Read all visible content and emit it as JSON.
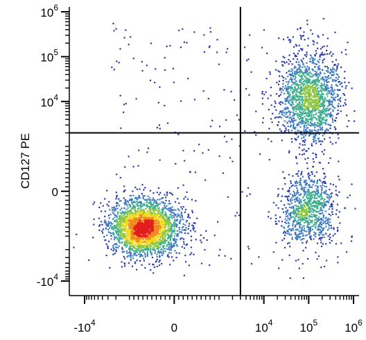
{
  "chart_data": {
    "type": "scatter",
    "title": "",
    "xlabel": "",
    "ylabel": "CD127 PE",
    "x_scale": "biexponential",
    "y_scale": "biexponential",
    "x_ticks": [
      {
        "base": "-10",
        "exp": "4",
        "value": -10000
      },
      {
        "base": "0",
        "exp": "",
        "value": 0
      },
      {
        "base": "10",
        "exp": "4",
        "value": 10000
      },
      {
        "base": "10",
        "exp": "5",
        "value": 100000
      },
      {
        "base": "10",
        "exp": "6",
        "value": 1000000
      }
    ],
    "y_ticks": [
      {
        "base": "10",
        "exp": "6",
        "value": 1000000
      },
      {
        "base": "10",
        "exp": "5",
        "value": 100000
      },
      {
        "base": "10",
        "exp": "4",
        "value": 10000
      },
      {
        "base": "0",
        "exp": "",
        "value": 0
      },
      {
        "base": "-10",
        "exp": "4",
        "value": -10000
      }
    ],
    "quadrant_gate": {
      "x": 3000,
      "y": 2000
    },
    "density_colormap": [
      "#2a3ba8",
      "#3d7ac2",
      "#3fae8f",
      "#8cc63f",
      "#f2d81e",
      "#f08a1e",
      "#e31d1d"
    ],
    "populations": [
      {
        "cx": -700,
        "cy": -800,
        "events": 2600
      },
      {
        "cx": 100000,
        "cy": 12000,
        "events": 1500
      },
      {
        "cx": 100000,
        "cy": -400,
        "events": 900
      }
    ],
    "grid": false,
    "legend": "none"
  }
}
